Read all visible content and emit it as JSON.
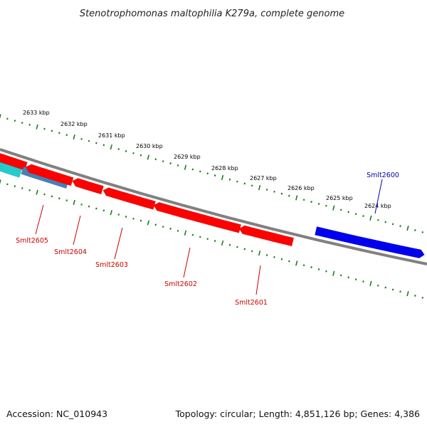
{
  "header": {
    "title": "Stenotrophomonas maltophilia K279a, complete genome"
  },
  "footer": {
    "accession": "Accession: NC_010943",
    "topology": "Topology: circular; Length: 4,851,126 bp; Genes: 4,386"
  },
  "colors": {
    "backbone": "#808080",
    "tick": "#1e7d1e",
    "reverse_gene": "#ff0000",
    "forward_gene": "#0000ee",
    "cyan_gene": "#22cccc",
    "steel_gene": "#4a7fb5",
    "reverse_label": "#cc0000",
    "forward_label": "#0000aa"
  },
  "scale_labels": [
    "2633 kbp",
    "2632 kbp",
    "2631 kbp",
    "2630 kbp",
    "2629 kbp",
    "2628 kbp",
    "2627 kbp",
    "2626 kbp",
    "2625 kbp",
    "2624 kbp"
  ],
  "genes": [
    {
      "label": "Smlt2600",
      "strand": "forward"
    },
    {
      "label": "Smlt2601",
      "strand": "reverse"
    },
    {
      "label": "Smlt2602",
      "strand": "reverse"
    },
    {
      "label": "Smlt2603",
      "strand": "reverse"
    },
    {
      "label": "Smlt2604",
      "strand": "reverse"
    },
    {
      "label": "Smlt2605",
      "strand": "reverse"
    }
  ]
}
